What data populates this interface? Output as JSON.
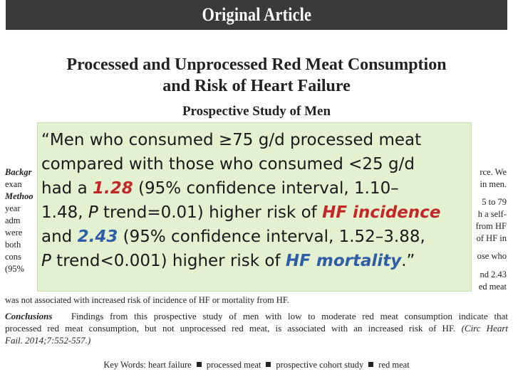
{
  "header": {
    "title": "Original Article"
  },
  "article": {
    "title_line1": "Processed and Unprocessed Red Meat Consumption",
    "title_line2": "and Risk of Heart Failure",
    "subtitle": "Prospective Study of Men"
  },
  "abstract_fragments": {
    "left": [
      {
        "label": "Backgr",
        "text": ""
      },
      {
        "label": "",
        "text": "exan"
      },
      {
        "label": "Methoo",
        "text": ""
      },
      {
        "label": "",
        "text": "year"
      },
      {
        "label": "",
        "text": "adm"
      },
      {
        "label": "",
        "text": "were"
      },
      {
        "label": "",
        "text": "both"
      },
      {
        "label": "",
        "text": "cons"
      },
      {
        "label": "",
        "text": "(95%"
      }
    ],
    "right": [
      "rce. We",
      "in men.",
      "5 to 79",
      "h a self-",
      "from HF",
      "of HF in",
      "ose who",
      "nd 2.43",
      "ed meat"
    ],
    "last_line": "was not associated with increased risk of incidence of HF or mortality from HF."
  },
  "conclusions": {
    "label": "Conclusions",
    "line1": "Findings from this prospective study of men with low to moderate red meat consumption indicate that",
    "line2_text": "processed red meat consumption, but not unprocessed red meat, is associated with an increased risk of HF.",
    "citation_line2": "(Circ Heart",
    "citation_line3": "Fail. 2014;7:552-557.)"
  },
  "keywords": {
    "label": "Key Words:",
    "items": [
      "heart failure",
      "processed meat",
      "prospective cohort study",
      "red meat"
    ]
  },
  "quote": {
    "l1": "“Men who consumed ≥75 g/d processed meat",
    "l2": "compared with those who consumed <25 g/d",
    "l3_a": "had a ",
    "l3_b": "1.28",
    "l3_c": " (95% confidence interval, 1.10–",
    "l4_a": "1.48, ",
    "l4_b": "P",
    "l4_c": " trend=0.01) higher risk of ",
    "l4_d": "HF incidence",
    "l5_a": "and ",
    "l5_b": "2.43",
    "l5_c": " (95% confidence interval, 1.52–3.88,",
    "l6_a": "P",
    "l6_b": " trend<0.001) higher risk of ",
    "l6_c": "HF mortality",
    "l6_d": ".”"
  },
  "colors": {
    "header_bg": "#3a3a3a",
    "quote_bg": "#e3f1d0",
    "highlight_red": "#c0282a",
    "highlight_blue": "#2f5da8"
  }
}
